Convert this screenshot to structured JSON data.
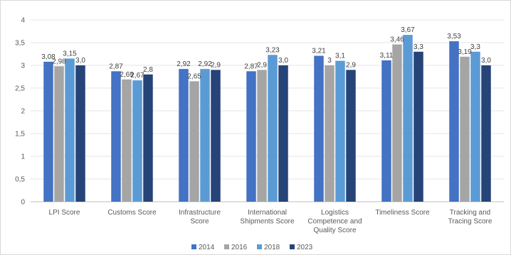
{
  "chart_data": {
    "type": "bar",
    "categories": [
      [
        "LPI Score"
      ],
      [
        "Customs Score"
      ],
      [
        "Infrastructure",
        "Score"
      ],
      [
        "International",
        "Shipments Score"
      ],
      [
        "Logistics",
        "Competence and",
        "Quality Score"
      ],
      [
        "Timeliness Score"
      ],
      [
        "Tracking and",
        "Tracing Score"
      ]
    ],
    "series": [
      {
        "name": "2014",
        "color": "#4472c4",
        "values": [
          3.08,
          2.87,
          2.92,
          2.87,
          3.21,
          3.11,
          3.53
        ],
        "labels": [
          "3,08",
          "2,87",
          "2,92",
          "2,87",
          "3,21",
          "3,11",
          "3,53"
        ]
      },
      {
        "name": "2016",
        "color": "#a5a5a5",
        "values": [
          2.98,
          2.69,
          2.65,
          2.9,
          3.0,
          3.46,
          3.19
        ],
        "labels": [
          "2,98",
          "2,69",
          "2,65",
          "2,9",
          "3",
          "3,46",
          "3,19"
        ]
      },
      {
        "name": "2018",
        "color": "#5b9bd5",
        "values": [
          3.15,
          2.67,
          2.92,
          3.23,
          3.1,
          3.67,
          3.3
        ],
        "labels": [
          "3,15",
          "2,67",
          "2,92",
          "3,23",
          "3,1",
          "3,67",
          "3,3"
        ]
      },
      {
        "name": "2023",
        "color": "#264478",
        "values": [
          3.0,
          2.8,
          2.9,
          3.0,
          2.9,
          3.3,
          3.0
        ],
        "labels": [
          "3,0",
          "2,8",
          "2,9",
          "3,0",
          "2,9",
          "3,3",
          "3,0"
        ]
      }
    ],
    "yticks": [
      "0",
      "0,5",
      "1",
      "1,5",
      "2",
      "2,5",
      "3",
      "3,5",
      "4"
    ],
    "ylim": [
      0,
      4
    ],
    "grid": true,
    "legend": "bottom"
  }
}
